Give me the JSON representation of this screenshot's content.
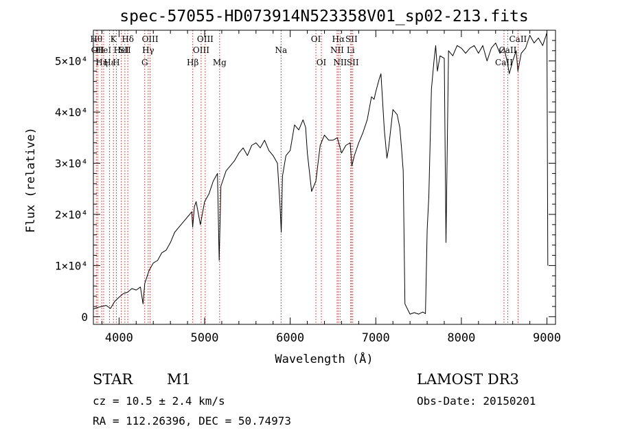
{
  "chart_data": {
    "type": "line",
    "title": "spec-57055-HD073914N523358V01_sp02-213.fits",
    "xlabel": "Wavelength (Å)",
    "ylabel": "Flux (relative)",
    "xlim": [
      3700,
      9100
    ],
    "ylim": [
      -1500,
      56000
    ],
    "x_ticks": [
      4000,
      5000,
      6000,
      7000,
      8000,
      9000
    ],
    "y_ticks": [
      {
        "value": 0,
        "label": "0"
      },
      {
        "value": 10000,
        "label": "1×10⁴"
      },
      {
        "value": 20000,
        "label": "2×10⁴"
      },
      {
        "value": 30000,
        "label": "3×10⁴"
      },
      {
        "value": 40000,
        "label": "4×10⁴"
      },
      {
        "value": 50000,
        "label": "5×10⁴"
      }
    ],
    "grid": false,
    "line_color": "#000000",
    "marker_color": "#b22222",
    "series": [
      {
        "x": [
          3700,
          3750,
          3800,
          3850,
          3900,
          3950,
          4000,
          4050,
          4100,
          4150,
          4200,
          4250,
          4280,
          4300,
          4350,
          4400,
          4450,
          4500,
          4550,
          4600,
          4650,
          4700,
          4750,
          4800,
          4850,
          4860,
          4880,
          4900,
          4950,
          5000,
          5050,
          5100,
          5150,
          5170,
          5190,
          5250,
          5300,
          5350,
          5400,
          5450,
          5500,
          5550,
          5600,
          5650,
          5700,
          5750,
          5800,
          5850,
          5880,
          5895,
          5910,
          5950,
          6000,
          6050,
          6100,
          6150,
          6180,
          6200,
          6250,
          6300,
          6350,
          6400,
          6450,
          6500,
          6550,
          6600,
          6650,
          6700,
          6720,
          6750,
          6800,
          6850,
          6900,
          6950,
          6980,
          7000,
          7040,
          7060,
          7100,
          7130,
          7150,
          7200,
          7250,
          7280,
          7300,
          7320,
          7340,
          7400,
          7450,
          7500,
          7550,
          7580,
          7600,
          7620,
          7650,
          7680,
          7700,
          7720,
          7750,
          7800,
          7820,
          7850,
          7900,
          7950,
          8000,
          8050,
          8100,
          8150,
          8200,
          8250,
          8300,
          8350,
          8400,
          8450,
          8500,
          8540,
          8560,
          8600,
          8640,
          8660,
          8700,
          8750,
          8800,
          8850,
          8900,
          8950,
          9000,
          9010
        ],
        "y": [
          1500,
          1800,
          2000,
          2200,
          1600,
          3000,
          3800,
          4500,
          4800,
          5500,
          5200,
          5800,
          2500,
          6500,
          9000,
          10500,
          11000,
          12500,
          13000,
          14500,
          16500,
          17500,
          18500,
          19500,
          20500,
          17500,
          21500,
          22500,
          18000,
          22500,
          24000,
          26500,
          28000,
          11000,
          25500,
          28500,
          29500,
          30500,
          32000,
          33000,
          31500,
          33500,
          34000,
          33000,
          34500,
          32500,
          31500,
          30000,
          22000,
          16500,
          27500,
          31500,
          32500,
          37500,
          36500,
          38500,
          37000,
          32000,
          24500,
          26500,
          33500,
          35500,
          34500,
          34500,
          35000,
          32000,
          33500,
          34000,
          29500,
          31500,
          34000,
          36000,
          38500,
          43000,
          42500,
          44000,
          46500,
          47500,
          36500,
          31000,
          33000,
          40500,
          39500,
          37000,
          33000,
          28500,
          2500,
          500,
          800,
          500,
          900,
          600,
          17000,
          23500,
          44500,
          50000,
          53000,
          48000,
          51000,
          50500,
          14500,
          52000,
          51000,
          53000,
          52500,
          51500,
          52500,
          53000,
          51500,
          53000,
          50000,
          52500,
          53500,
          51500,
          52500,
          49500,
          47500,
          50000,
          52000,
          48000,
          51500,
          52500,
          55000,
          53500,
          54500,
          53000,
          55500,
          10000
        ]
      }
    ],
    "line_markers": [
      {
        "x": 3734,
        "label": "Hθ",
        "row": 0
      },
      {
        "x": 3750,
        "label": "OII",
        "row": 1
      },
      {
        "x": 3797,
        "label": "Hη",
        "row": 2
      },
      {
        "x": 3820,
        "label": "HeI",
        "row": 1
      },
      {
        "x": 3889,
        "label": "Hε",
        "row": 2
      },
      {
        "x": 3934,
        "label": "K",
        "row": 0
      },
      {
        "x": 3968,
        "label": "H",
        "row": 2
      },
      {
        "x": 4026,
        "label": "HeI",
        "row": 1
      },
      {
        "x": 4068,
        "label": "SII",
        "row": 1
      },
      {
        "x": 4102,
        "label": "Hδ",
        "row": 0
      },
      {
        "x": 4300,
        "label": "G",
        "row": 2
      },
      {
        "x": 4340,
        "label": "Hγ",
        "row": 1
      },
      {
        "x": 4363,
        "label": "OIII",
        "row": 0
      },
      {
        "x": 4861,
        "label": "Hβ",
        "row": 2
      },
      {
        "x": 4959,
        "label": "OIII",
        "row": 1
      },
      {
        "x": 5007,
        "label": "OIII",
        "row": 0
      },
      {
        "x": 5175,
        "label": "Mg",
        "row": 2
      },
      {
        "x": 5893,
        "label": "Na",
        "row": 1
      },
      {
        "x": 6300,
        "label": "OI",
        "row": 0
      },
      {
        "x": 6364,
        "label": "OI",
        "row": 2
      },
      {
        "x": 6548,
        "label": "NII",
        "row": 1
      },
      {
        "x": 6563,
        "label": "Hα",
        "row": 0
      },
      {
        "x": 6583,
        "label": "NII",
        "row": 2
      },
      {
        "x": 6707,
        "label": "Li",
        "row": 1
      },
      {
        "x": 6716,
        "label": "SII",
        "row": 0
      },
      {
        "x": 6731,
        "label": "SII",
        "row": 2
      },
      {
        "x": 8498,
        "label": "CaII",
        "row": 2
      },
      {
        "x": 8542,
        "label": "CaII",
        "row": 1
      },
      {
        "x": 8662,
        "label": "CaII",
        "row": 0
      }
    ]
  },
  "info": {
    "object_class": "STAR",
    "subclass": "M1",
    "survey": "LAMOST DR3",
    "redshift_text": "cz = 10.5 ± 2.4 km/s",
    "obs_date": "Obs-Date: 20150201",
    "coords": "RA = 112.26396, DEC =  50.74973"
  }
}
